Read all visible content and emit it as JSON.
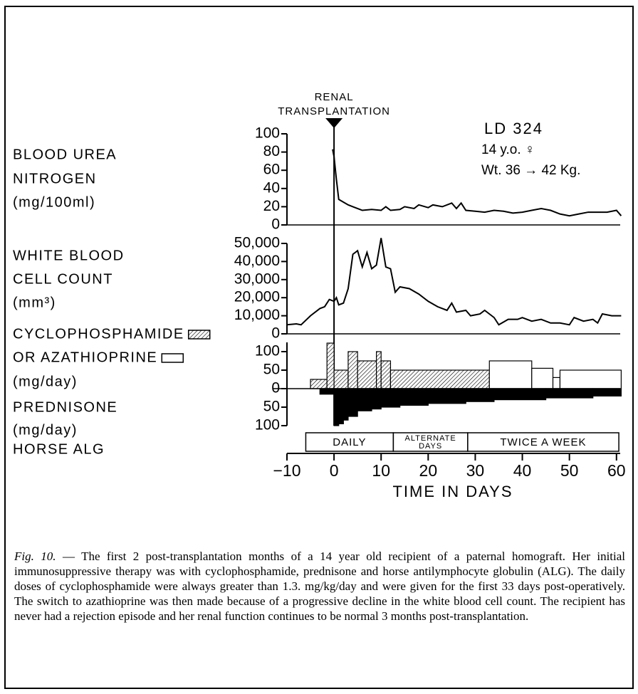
{
  "chart_data": [
    {
      "type": "line",
      "ylabel": [
        "BLOOD UREA",
        "NITROGEN",
        "(mg/100ml)"
      ],
      "event": {
        "x": 0,
        "label": [
          "RENAL",
          "TRANSPLANTATION"
        ]
      },
      "patient": [
        "LD 324",
        "14 y.o. ♀",
        "Wt. 36 → 42 Kg."
      ],
      "x": [
        -0.3,
        0,
        0.5,
        1,
        2,
        3,
        4,
        6,
        8,
        10,
        11,
        12,
        14,
        15,
        17,
        18,
        20,
        21,
        23,
        25,
        26,
        27,
        28,
        30,
        32,
        34,
        36,
        38,
        40,
        42,
        44,
        46,
        48,
        50,
        52,
        54,
        56,
        58,
        60,
        61
      ],
      "values": [
        83,
        75,
        50,
        28,
        25,
        22,
        20,
        16,
        17,
        16,
        20,
        16,
        17,
        20,
        18,
        22,
        19,
        22,
        20,
        24,
        18,
        24,
        16,
        15,
        14,
        16,
        15,
        13,
        14,
        16,
        18,
        16,
        12,
        10,
        12,
        14,
        14,
        14,
        16,
        10
      ],
      "color": "#000000",
      "ylim": [
        0,
        100
      ],
      "yticks": [
        0,
        20,
        40,
        60,
        80,
        100
      ]
    },
    {
      "type": "line",
      "ylabel": [
        "WHITE BLOOD",
        "CELL COUNT",
        "(mm³)"
      ],
      "x": [
        -10,
        -8,
        -7,
        -5,
        -3,
        -2,
        -1,
        0,
        0.5,
        1,
        2,
        3,
        4,
        5,
        6,
        7,
        8,
        9,
        10,
        11,
        12,
        13,
        14,
        16,
        18,
        20,
        22,
        24,
        25,
        26,
        28,
        29,
        31,
        32,
        34,
        35,
        37,
        39,
        40,
        42,
        44,
        46,
        48,
        50,
        51,
        53,
        55,
        56,
        57,
        59,
        61
      ],
      "values": [
        5000,
        5500,
        5000,
        10000,
        14000,
        15000,
        19000,
        18000,
        20000,
        16000,
        17000,
        25000,
        44000,
        46000,
        37000,
        45000,
        36000,
        38000,
        53000,
        37000,
        36000,
        23000,
        26000,
        25000,
        22000,
        18000,
        15000,
        13000,
        17000,
        12000,
        13000,
        10000,
        11000,
        13000,
        9000,
        5000,
        8000,
        8000,
        9000,
        7000,
        8000,
        6000,
        6000,
        5000,
        9000,
        7000,
        8000,
        6000,
        11000,
        10000,
        10000
      ],
      "color": "#000000",
      "ylim": [
        0,
        50000
      ],
      "yticks": [
        0,
        {
          "value": 10000,
          "label": "10,000"
        },
        {
          "value": 20000,
          "label": "20,000"
        },
        {
          "value": 30000,
          "label": "30,000"
        },
        {
          "value": 40000,
          "label": "40,000"
        },
        {
          "value": 50000,
          "label": "50,000"
        }
      ]
    },
    {
      "type": "bar",
      "ylim": [
        -100,
        125
      ],
      "yticks": [
        {
          "value": -100,
          "label": "100"
        },
        {
          "value": -50,
          "label": "50"
        },
        0,
        50,
        100
      ],
      "series": [
        {
          "name": "CYCLOPHOSPHAMIDE",
          "pattern": "hatch",
          "color": "#000000",
          "bins": [
            -5,
            -1.5,
            0,
            3,
            5,
            9,
            10,
            12,
            33
          ],
          "values": [
            25,
            123,
            50,
            100,
            75,
            100,
            75,
            50
          ]
        },
        {
          "name": "OR AZATHIOPRINE",
          "unit": "(mg/day)",
          "pattern": "open",
          "color": "#000000",
          "bins": [
            33,
            42,
            46.5,
            48,
            61
          ],
          "values": [
            75,
            55,
            30,
            50
          ]
        },
        {
          "name": "PREDNISONE",
          "unit": "(mg/day)",
          "pattern": "solid",
          "color": "#000000",
          "bins": [
            -3,
            0,
            1,
            2,
            3,
            5,
            8,
            10,
            14,
            20,
            28,
            34,
            45,
            55,
            61
          ],
          "values": [
            -15,
            -100,
            -95,
            -85,
            -75,
            -60,
            -55,
            -50,
            -45,
            -40,
            -35,
            -30,
            -25,
            -20
          ]
        }
      ]
    },
    {
      "type": "timeline",
      "title": "HORSE ALG",
      "segments": [
        {
          "lines": [
            "DAILY"
          ],
          "start": -6,
          "end": 12.6
        },
        {
          "lines": [
            "ALTERNATE",
            "DAYS"
          ],
          "start": 12.6,
          "end": 28.4
        },
        {
          "lines": [
            "TWICE A WEEK"
          ],
          "start": 28.4,
          "end": 60.5
        }
      ],
      "xlim": [
        -10,
        62
      ],
      "xticks": [
        {
          "value": -10,
          "label": "−10"
        },
        0,
        10,
        20,
        30,
        40,
        50,
        60
      ],
      "xlabel": "TIME IN DAYS"
    }
  ],
  "figure_label": "Fig. 10.",
  "caption": "— The first 2 post-transplantation months of a 14 year old recipient of a paternal homograft. Her initial immunosuppressive therapy was with cyclophosphamide, prednisone and horse antilymphocyte globulin (ALG). The daily doses of cyclophosphamide were always greater than 1.3. mg/kg/day and were given for the first 33 days post-operatively. The switch to azathioprine was then made because of a progressive decline in the white blood cell count. The recipient has never had a rejection episode and her renal function continues to be normal 3 months post-transplantation."
}
